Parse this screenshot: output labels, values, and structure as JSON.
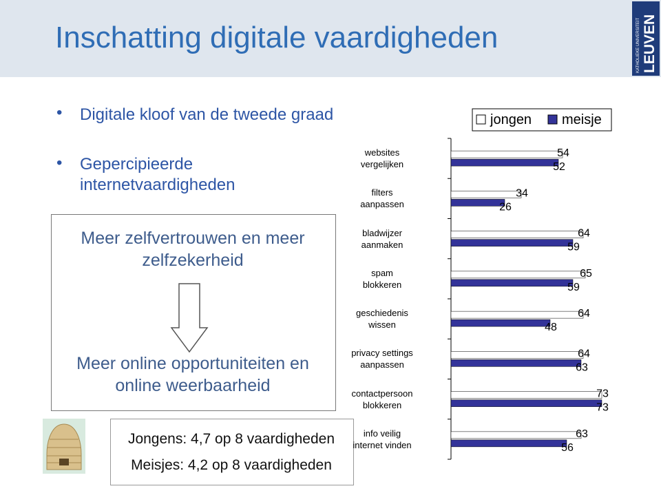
{
  "header": {
    "title": "Inschatting digitale vaardigheden",
    "logo_top": "KATHOLIEKE UNIVERSITEIT",
    "logo_main": "LEUVEN"
  },
  "bullets": [
    "Digitale kloof van de tweede graad",
    "Gepercipieerde internetvaardigheden"
  ],
  "box": {
    "top": "Meer zelfvertrouwen en meer zelfzekerheid",
    "bottom": "Meer online opportuniteiten en online weerbaarheid"
  },
  "summary": [
    "Jongens: 4,7 op 8 vaardigheden",
    "Meisjes: 4,2 op 8 vaardigheden"
  ],
  "chart_data": {
    "type": "bar",
    "orientation": "horizontal",
    "categories": [
      "websites\nvergelijken",
      "filters\naanpassen",
      "bladwijzer\naanmaken",
      "spam\nblokkeren",
      "geschiedenis\nwissen",
      "privacy settings\naanpassen",
      "contactpersoon\nblokkeren",
      "info veilig\ninternet vinden"
    ],
    "series": [
      {
        "name": "jongen",
        "color": "#ffffff",
        "values": [
          54,
          34,
          64,
          65,
          64,
          64,
          73,
          63
        ]
      },
      {
        "name": "meisje",
        "color": "#333399",
        "values": [
          52,
          26,
          59,
          59,
          48,
          63,
          73,
          56
        ]
      }
    ],
    "xlim": [
      0,
      100
    ],
    "legend": "top"
  }
}
